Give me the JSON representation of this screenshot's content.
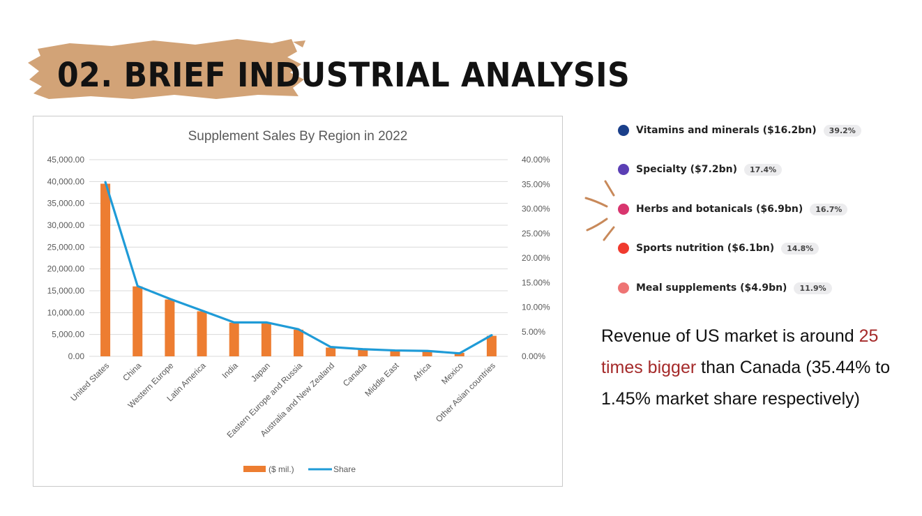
{
  "title": "02. BRIEF INDUSTRIAL ANALYSIS",
  "chart_data": {
    "type": "bar",
    "title": "Supplement Sales By Region in 2022",
    "categories": [
      "United States",
      "China",
      "Western Europe",
      "Latin America",
      "India",
      "Japan",
      "Eastern Europe and Russia",
      "Australia and New Zealand",
      "Canada",
      "Middle East",
      "Africa",
      "Mexico",
      "Other Asian countries"
    ],
    "series": [
      {
        "name": "($ mil.)",
        "type": "bar",
        "axis": "left",
        "color": "#ed7d31",
        "values": [
          39500,
          16000,
          13000,
          10300,
          7700,
          7600,
          6100,
          2000,
          1600,
          1400,
          1200,
          800,
          4700
        ]
      },
      {
        "name": "Share",
        "type": "line",
        "axis": "right",
        "color": "#1f9bd7",
        "values": [
          35.44,
          14.3,
          11.7,
          9.3,
          6.9,
          6.9,
          5.5,
          1.9,
          1.45,
          1.2,
          1.1,
          0.6,
          4.3
        ]
      }
    ],
    "y_left": {
      "min": 0,
      "max": 45000,
      "step": 5000,
      "ticks": [
        "0.00",
        "5,000.00",
        "10,000.00",
        "15,000.00",
        "20,000.00",
        "25,000.00",
        "30,000.00",
        "35,000.00",
        "40,000.00",
        "45,000.00"
      ]
    },
    "y_right": {
      "min": 0,
      "max": 40,
      "step": 5,
      "ticks": [
        "0.00%",
        "5.00%",
        "10.00%",
        "15.00%",
        "20.00%",
        "25.00%",
        "30.00%",
        "35.00%",
        "40.00%"
      ]
    },
    "grid": true,
    "legend": "bottom"
  },
  "breakdown": [
    {
      "label": "Vitamins and minerals ($16.2bn)",
      "pct": "39.2%",
      "color": "#1a3f8a"
    },
    {
      "label": "Specialty ($7.2bn)",
      "pct": "17.4%",
      "color": "#5b3fb5"
    },
    {
      "label": "Herbs and botanicals ($6.9bn)",
      "pct": "16.7%",
      "color": "#d8356e"
    },
    {
      "label": "Sports nutrition ($6.1bn)",
      "pct": "14.8%",
      "color": "#f03a2e"
    },
    {
      "label": "Meal supplements ($4.9bn)",
      "pct": "11.9%",
      "color": "#ee7474"
    }
  ],
  "note": {
    "part1": "Revenue of US market is around ",
    "highlight": "25 times bigger",
    "part2": " than Canada (35.44% to 1.45% market share respectively)"
  },
  "colors": {
    "brush": "#d2a377",
    "rays": "#c8895a",
    "highlight": "#a52a2a"
  }
}
